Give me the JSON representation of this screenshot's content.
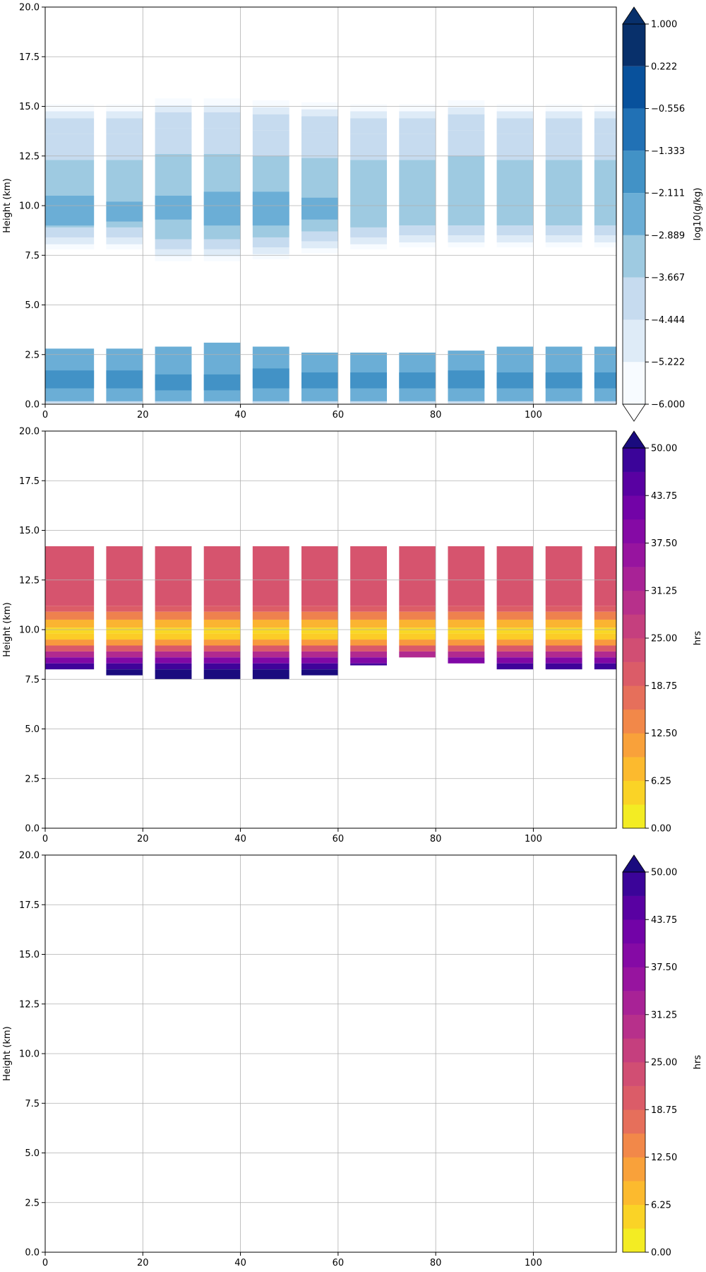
{
  "chart_data": [
    {
      "type": "heatmap",
      "title": "",
      "xlabel": "",
      "ylabel": "Height (km)",
      "xlim": [
        0,
        117
      ],
      "ylim": [
        0,
        20
      ],
      "xticks": [
        "0",
        "20",
        "40",
        "60",
        "80",
        "100"
      ],
      "yticks": [
        "0.0",
        "2.5",
        "5.0",
        "7.5",
        "10.0",
        "12.5",
        "15.0",
        "17.5",
        "20.0"
      ],
      "grid": true,
      "colormap": "Blues",
      "colorbar": {
        "label": "log10(g/kg)",
        "levels": [
          -6.0,
          -5.222,
          -4.444,
          -3.667,
          -2.889,
          -2.111,
          -1.333,
          -0.556,
          0.222,
          1.0
        ],
        "tick_labels": [
          "−6.000",
          "−5.222",
          "−4.444",
          "−3.667",
          "−2.889",
          "−2.111",
          "−1.333",
          "−0.556",
          "0.222",
          "1.000"
        ],
        "extend": "both",
        "colors": [
          "#f7fbff",
          "#deebf7",
          "#c6dbef",
          "#9ecae1",
          "#6baed6",
          "#4292c6",
          "#2171b5",
          "#08519c",
          "#08306b"
        ]
      },
      "columns": [
        {
          "x": [
            0,
            10
          ],
          "upper": {
            "bottom": 7.8,
            "top": 15.1,
            "core": [
              9.0,
              10.5
            ]
          },
          "lower": {
            "top": 2.8,
            "core": [
              0.8,
              1.7
            ]
          }
        },
        {
          "x": [
            12.5,
            20
          ],
          "upper": {
            "bottom": 7.8,
            "top": 15.1,
            "core": [
              9.2,
              10.2
            ]
          },
          "lower": {
            "top": 2.8,
            "core": [
              0.8,
              1.7
            ]
          }
        },
        {
          "x": [
            22.5,
            30
          ],
          "upper": {
            "bottom": 7.2,
            "top": 15.4,
            "core": [
              9.3,
              10.5
            ]
          },
          "lower": {
            "top": 2.9,
            "core": [
              0.7,
              1.5
            ]
          }
        },
        {
          "x": [
            32.5,
            40
          ],
          "upper": {
            "bottom": 7.2,
            "top": 15.4,
            "core": [
              9.0,
              10.7
            ]
          },
          "lower": {
            "top": 3.1,
            "core": [
              0.7,
              1.5
            ]
          }
        },
        {
          "x": [
            42.5,
            50
          ],
          "upper": {
            "bottom": 7.3,
            "top": 15.3,
            "core": [
              9.0,
              10.7
            ]
          },
          "lower": {
            "top": 2.9,
            "core": [
              0.8,
              1.8
            ]
          }
        },
        {
          "x": [
            52.5,
            60
          ],
          "upper": {
            "bottom": 7.6,
            "top": 15.2,
            "core": [
              9.3,
              10.4
            ]
          },
          "lower": {
            "top": 2.6,
            "core": [
              0.8,
              1.6
            ]
          }
        },
        {
          "x": [
            62.5,
            70
          ],
          "upper": {
            "bottom": 7.8,
            "top": 15.1,
            "core": null
          },
          "lower": {
            "top": 2.6,
            "core": [
              0.8,
              1.6
            ]
          }
        },
        {
          "x": [
            72.5,
            80
          ],
          "upper": {
            "bottom": 7.9,
            "top": 15.1,
            "core": null
          },
          "lower": {
            "top": 2.6,
            "core": [
              0.8,
              1.6
            ]
          }
        },
        {
          "x": [
            82.5,
            90
          ],
          "upper": {
            "bottom": 7.9,
            "top": 15.3,
            "core": null
          },
          "lower": {
            "top": 2.7,
            "core": [
              0.8,
              1.7
            ]
          }
        },
        {
          "x": [
            92.5,
            100
          ],
          "upper": {
            "bottom": 7.9,
            "top": 15.1,
            "core": null
          },
          "lower": {
            "top": 2.9,
            "core": [
              0.8,
              1.6
            ]
          }
        },
        {
          "x": [
            102.5,
            110
          ],
          "upper": {
            "bottom": 7.9,
            "top": 15.1,
            "core": null
          },
          "lower": {
            "top": 2.9,
            "core": [
              0.8,
              1.6
            ]
          }
        },
        {
          "x": [
            112.5,
            117
          ],
          "upper": {
            "bottom": 7.9,
            "top": 15.1,
            "core": null
          },
          "lower": {
            "top": 2.9,
            "core": [
              0.8,
              1.6
            ]
          }
        }
      ]
    },
    {
      "type": "heatmap",
      "title": "",
      "xlabel": "",
      "ylabel": "Height (km)",
      "xlim": [
        0,
        117
      ],
      "ylim": [
        0,
        20
      ],
      "xticks": [
        "0",
        "20",
        "40",
        "60",
        "80",
        "100"
      ],
      "yticks": [
        "0.0",
        "2.5",
        "5.0",
        "7.5",
        "10.0",
        "12.5",
        "15.0",
        "17.5",
        "20.0"
      ],
      "grid": true,
      "colormap": "plasma_r",
      "colorbar": {
        "label": "hrs",
        "levels_min": 0,
        "levels_max": 50,
        "levels_step": 3.125,
        "tick_labels": [
          "0.00",
          "6.25",
          "12.50",
          "18.75",
          "25.00",
          "31.25",
          "37.50",
          "43.75",
          "50.00"
        ],
        "extend": "max",
        "top_color": "#1a0b7e"
      },
      "columns": [
        {
          "x": [
            0,
            10
          ],
          "bottom": 8.0,
          "top": 14.2
        },
        {
          "x": [
            12.5,
            20
          ],
          "bottom": 7.7,
          "top": 14.2
        },
        {
          "x": [
            22.5,
            30
          ],
          "bottom": 7.5,
          "top": 14.2
        },
        {
          "x": [
            32.5,
            40
          ],
          "bottom": 7.5,
          "top": 14.2
        },
        {
          "x": [
            42.5,
            50
          ],
          "bottom": 7.5,
          "top": 14.2
        },
        {
          "x": [
            52.5,
            60
          ],
          "bottom": 7.7,
          "top": 14.2
        },
        {
          "x": [
            62.5,
            70
          ],
          "bottom": 8.2,
          "top": 14.2
        },
        {
          "x": [
            72.5,
            80
          ],
          "bottom": 8.6,
          "top": 14.2
        },
        {
          "x": [
            82.5,
            90
          ],
          "bottom": 8.3,
          "top": 14.2
        },
        {
          "x": [
            92.5,
            100
          ],
          "bottom": 8.0,
          "top": 14.2
        },
        {
          "x": [
            102.5,
            110
          ],
          "bottom": 8.0,
          "top": 14.2
        },
        {
          "x": [
            112.5,
            117
          ],
          "bottom": 8.0,
          "top": 14.2
        }
      ],
      "profile": [
        {
          "z": 14.2,
          "v": 22
        },
        {
          "z": 11.2,
          "v": 22
        },
        {
          "z": 10.9,
          "v": 18
        },
        {
          "z": 10.5,
          "v": 12
        },
        {
          "z": 10.1,
          "v": 5
        },
        {
          "z": 9.8,
          "v": 3
        },
        {
          "z": 9.5,
          "v": 8
        },
        {
          "z": 9.2,
          "v": 16
        },
        {
          "z": 8.9,
          "v": 26
        },
        {
          "z": 8.6,
          "v": 36
        },
        {
          "z": 8.3,
          "v": 44
        },
        {
          "z": 8.0,
          "v": 52
        },
        {
          "z": 7.5,
          "v": 55
        }
      ]
    },
    {
      "type": "heatmap",
      "title": "",
      "xlabel": "",
      "ylabel": "Height (km)",
      "xlim": [
        0,
        117
      ],
      "ylim": [
        0,
        20
      ],
      "xticks": [
        "0",
        "20",
        "40",
        "60",
        "80",
        "100"
      ],
      "yticks": [
        "0.0",
        "2.5",
        "5.0",
        "7.5",
        "10.0",
        "12.5",
        "15.0",
        "17.5",
        "20.0"
      ],
      "grid": true,
      "colormap": "plasma_r",
      "colorbar": {
        "label": "hrs",
        "levels_min": 0,
        "levels_max": 50,
        "levels_step": 3.125,
        "tick_labels": [
          "0.00",
          "6.25",
          "12.50",
          "18.75",
          "25.00",
          "31.25",
          "37.50",
          "43.75",
          "50.00"
        ],
        "extend": "max",
        "top_color": "#1a0b7e"
      },
      "columns": []
    }
  ]
}
